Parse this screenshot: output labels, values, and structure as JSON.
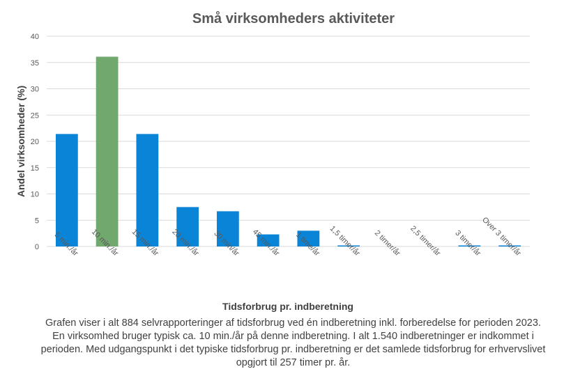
{
  "chart_data": {
    "type": "bar",
    "title": "Små virksomheders  aktiviteter",
    "xlabel": "Tidsforbrug pr. indberetning",
    "ylabel": "Andel virksomheder (%)",
    "ylim": [
      0,
      40
    ],
    "yticks": [
      0,
      5,
      10,
      15,
      20,
      25,
      30,
      35,
      40
    ],
    "grid": true,
    "categories": [
      "5 min./år",
      "10 min./år",
      "15 min./år",
      "20 min./år",
      "30 min/år",
      "45 min./år",
      "1 time/år",
      "1,5 timer/år",
      "2 timer/år",
      "2,5 timer/år",
      "3 timer/år",
      "Over 3 timer/år"
    ],
    "values": [
      21.4,
      36.1,
      21.4,
      7.5,
      6.7,
      2.3,
      3.0,
      0.2,
      0.0,
      0.0,
      0.2,
      0.2
    ],
    "colors": {
      "default": "#0A84D6",
      "highlight": "#70A86E",
      "highlight_category": "10 min./år",
      "grid": "#D9D9D9",
      "text": "#595959",
      "title": "#595959",
      "axis_title": "#404040"
    }
  },
  "caption": "Grafen viser i alt 884 selvrapporteringer af tidsforbrug ved én indberetning inkl. forberedelse for perioden 2023. En virksomhed bruger typisk ca. 10 min./år på denne indberetning. I alt 1.540 indberetninger er indkommet i perioden. Med udgangspunkt i det typiske tidsforbrug pr. indberetning er det samlede tidsforbrug for erhvervslivet opgjort til 257 timer pr. år."
}
